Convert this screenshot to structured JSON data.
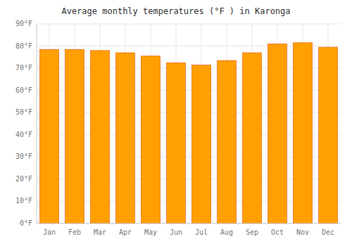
{
  "chart_data": {
    "type": "bar",
    "title": "Average monthly temperatures (°F ) in Karonga",
    "categories": [
      "Jan",
      "Feb",
      "Mar",
      "Apr",
      "May",
      "Jun",
      "Jul",
      "Aug",
      "Sep",
      "Oct",
      "Nov",
      "Dec"
    ],
    "values": [
      78.5,
      78.5,
      78.0,
      77.0,
      75.5,
      72.5,
      71.5,
      73.5,
      77.0,
      81.0,
      81.5,
      79.5
    ],
    "color": "#FFA000",
    "ylim": [
      0,
      90
    ],
    "yticks": [
      {
        "value": 0,
        "label": "0°F"
      },
      {
        "value": 10,
        "label": "10°F"
      },
      {
        "value": 20,
        "label": "20°F"
      },
      {
        "value": 30,
        "label": "30°F"
      },
      {
        "value": 40,
        "label": "40°F"
      },
      {
        "value": 50,
        "label": "50°F"
      },
      {
        "value": 60,
        "label": "60°F"
      },
      {
        "value": 70,
        "label": "70°F"
      },
      {
        "value": 80,
        "label": "80°F"
      },
      {
        "value": 90,
        "label": "90°F"
      }
    ],
    "grid": true
  }
}
